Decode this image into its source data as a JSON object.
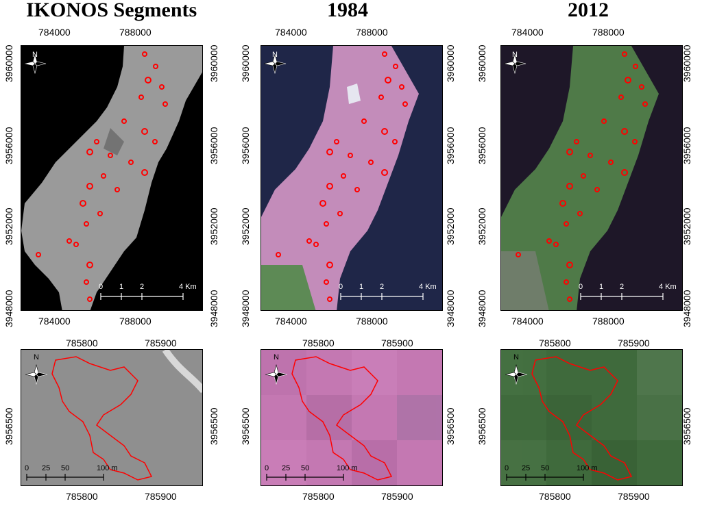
{
  "titles": [
    "IKONOS Segments",
    "1984",
    "2012"
  ],
  "top_x_ticks": [
    "784000",
    "788000"
  ],
  "top_y_ticks": [
    "3960000",
    "3956000",
    "3952000",
    "3948000"
  ],
  "bottom_x_ticks": [
    "785800",
    "785900"
  ],
  "bottom_y_ticks": [
    "3956500"
  ],
  "top_scale": {
    "labels": [
      "0",
      "1",
      "2",
      "4 Km"
    ]
  },
  "bottom_scale": {
    "labels": [
      "0",
      "25",
      "50",
      "100 m"
    ]
  },
  "north_label": "N",
  "colors": {
    "segment": "#ff0000",
    "ikonos_bg": "#000000",
    "ikonos_land": "#9a9a9a",
    "sea_1984": "#1f2648",
    "land_1984": "#c38cba",
    "sea_2012": "#1e1728",
    "land_2012": "#4f7a48",
    "zoom_ikonos": "#8f8f8f",
    "zoom_1984": "#c478b2",
    "zoom_2012": "#3f6a3c"
  }
}
